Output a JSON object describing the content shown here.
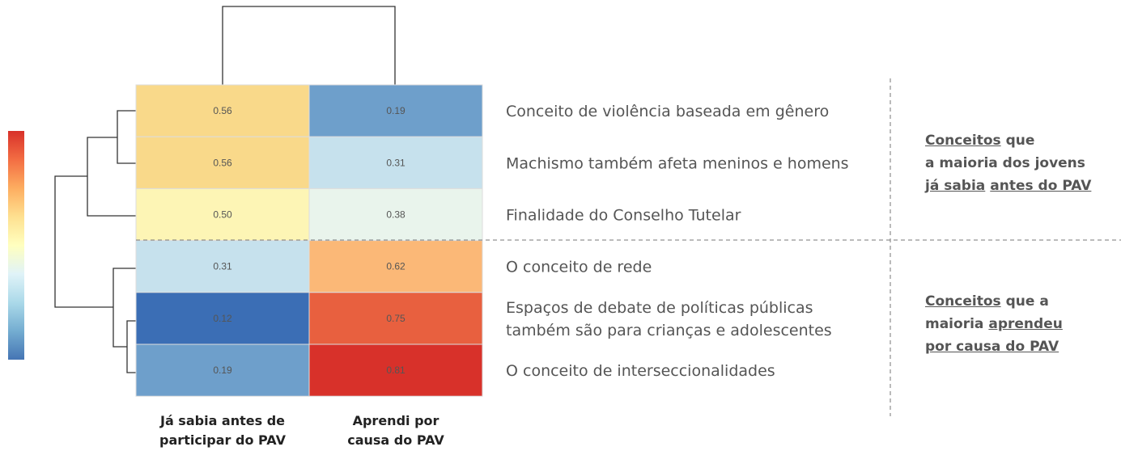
{
  "chart_data": {
    "type": "heatmap",
    "rows": [
      [
        "Conceito de violência baseada em gênero"
      ],
      [
        "Machismo também afeta meninos e homens"
      ],
      [
        "Finalidade do Conselho Tutelar"
      ],
      [
        "O conceito de rede"
      ],
      [
        "Espaços de debate de políticas públicas",
        "também são para crianças e adolescentes"
      ],
      [
        "O conceito de interseccionalidades"
      ]
    ],
    "columns": [
      [
        "Já sabia antes de",
        "participar do PAV"
      ],
      [
        "Aprendi por",
        "causa do PAV"
      ]
    ],
    "values": [
      [
        0.56,
        0.19
      ],
      [
        0.56,
        0.31
      ],
      [
        0.5,
        0.38
      ],
      [
        0.31,
        0.62
      ],
      [
        0.12,
        0.75
      ],
      [
        0.19,
        0.81
      ]
    ],
    "value_labels": [
      [
        "0.56",
        "0.19"
      ],
      [
        "0.56",
        "0.31"
      ],
      [
        "0.50",
        "0.38"
      ],
      [
        "0.31",
        "0.62"
      ],
      [
        "0.12",
        "0.75"
      ],
      [
        "0.19",
        "0.81"
      ]
    ],
    "colors": [
      [
        "#f9d98a",
        "#6e9fcb"
      ],
      [
        "#f9d98a",
        "#c6e1ed"
      ],
      [
        "#fdf5b5",
        "#e9f4ec"
      ],
      [
        "#c6e1ed",
        "#fbb877"
      ],
      [
        "#3b6eb5",
        "#e8603f"
      ],
      [
        "#6e9fcb",
        "#d8312a"
      ]
    ],
    "colorbar_colors": [
      "#d8312a",
      "#f36d43",
      "#fdad60",
      "#fee090",
      "#ffffbf",
      "#e0f3f8",
      "#abd9e9",
      "#74add1",
      "#4575b4"
    ],
    "annotations": [
      [
        [
          {
            "text": "Conceitos",
            "underline": true
          },
          {
            "text": "que",
            "underline": false
          }
        ],
        [
          {
            "text": "a maioria dos jovens",
            "underline": false
          }
        ],
        [
          {
            "text": "já sabia",
            "underline": true
          },
          {
            "text": "antes do PAV",
            "underline": true
          }
        ]
      ],
      [
        [
          {
            "text": "Conceitos",
            "underline": true
          },
          {
            "text": "que a",
            "underline": false
          }
        ],
        [
          {
            "text": "maioria",
            "underline": false
          },
          {
            "text": "aprendeu",
            "underline": true
          }
        ],
        [
          {
            "text": "por causa do PAV",
            "underline": true
          }
        ]
      ]
    ]
  }
}
